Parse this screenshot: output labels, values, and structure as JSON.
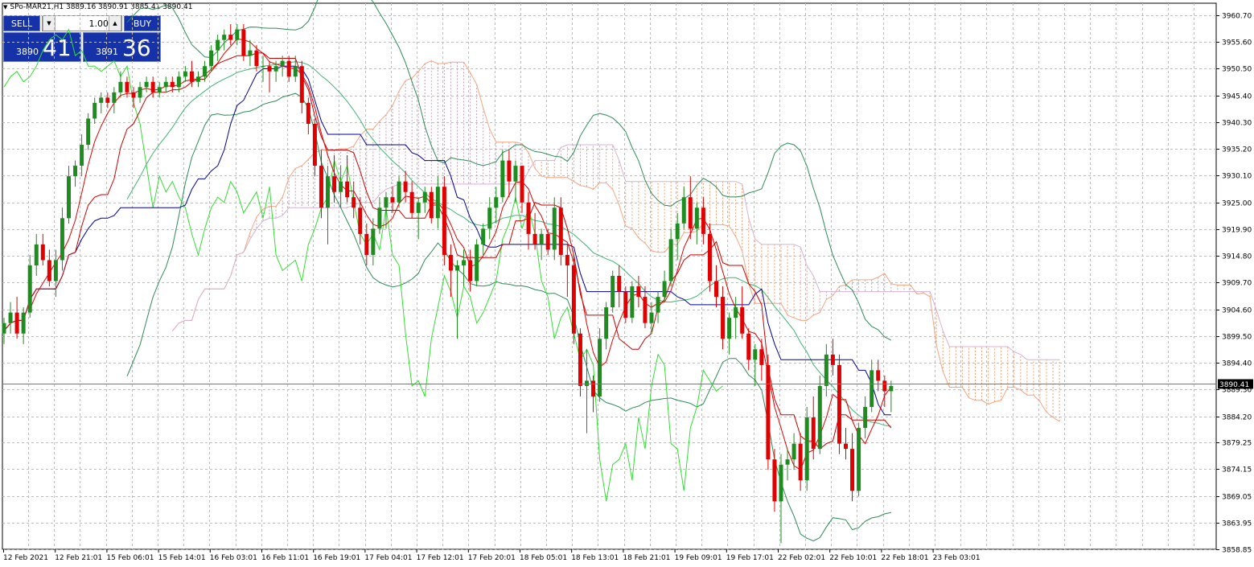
{
  "header": {
    "symbol_info": "SPo-MAR21,H1  3889.16 3890.91 3885.41 3890.41"
  },
  "trade_panel": {
    "sell_label": "SELL",
    "buy_label": "BUY",
    "lot_value": "1.00",
    "sell_price_small": "3890",
    "sell_price_big": "41",
    "buy_price_small": "3891",
    "buy_price_big": "36"
  },
  "colors": {
    "bull": "#1e8c1e",
    "bear": "#e00000",
    "grid": "#bcbcbc",
    "price_line": "#5f7f8f",
    "price_tag_bg": "#000000"
  },
  "chart_data": {
    "type": "candlestick",
    "symbol": "SPo-MAR21",
    "timeframe": "H1",
    "ylim": [
      3858.85,
      3963.0
    ],
    "y_ticks": [
      "3960.70",
      "3955.60",
      "3950.50",
      "3945.40",
      "3940.30",
      "3935.20",
      "3930.10",
      "3925.00",
      "3919.90",
      "3914.80",
      "3909.70",
      "3904.60",
      "3899.50",
      "3894.40",
      "3889.30",
      "3884.20",
      "3879.25",
      "3874.15",
      "3869.05",
      "3863.95",
      "3858.85"
    ],
    "x_ticks": [
      "12 Feb 2021",
      "12 Feb 21:01",
      "15 Feb 06:01",
      "15 Feb 14:01",
      "16 Feb 03:01",
      "16 Feb 11:01",
      "16 Feb 19:01",
      "17 Feb 04:01",
      "17 Feb 12:01",
      "17 Feb 20:01",
      "18 Feb 05:01",
      "18 Feb 13:01",
      "18 Feb 21:01",
      "19 Feb 09:01",
      "19 Feb 17:01",
      "22 Feb 02:01",
      "22 Feb 10:01",
      "22 Feb 18:01",
      "23 Feb 03:01"
    ],
    "current_price": "3890.41",
    "candles": [
      [
        3900,
        3903,
        3898,
        3902
      ],
      [
        3902,
        3906,
        3900,
        3904
      ],
      [
        3904,
        3907,
        3899,
        3900
      ],
      [
        3900,
        3905,
        3898,
        3904
      ],
      [
        3904,
        3915,
        3903,
        3913
      ],
      [
        3913,
        3919,
        3911,
        3917
      ],
      [
        3917,
        3919,
        3913,
        3914
      ],
      [
        3914,
        3916,
        3909,
        3910
      ],
      [
        3910,
        3916,
        3907,
        3914
      ],
      [
        3914,
        3924,
        3912,
        3922
      ],
      [
        3922,
        3932,
        3921,
        3930
      ],
      [
        3930,
        3933,
        3928,
        3932
      ],
      [
        3932,
        3938,
        3930,
        3936
      ],
      [
        3936,
        3942,
        3935,
        3941
      ],
      [
        3941,
        3945,
        3940,
        3944
      ],
      [
        3944,
        3946,
        3942,
        3945
      ],
      [
        3945,
        3946,
        3943,
        3944
      ],
      [
        3944,
        3947,
        3942,
        3946
      ],
      [
        3946,
        3950,
        3945,
        3948
      ],
      [
        3948,
        3949,
        3945,
        3946
      ],
      [
        3946,
        3947,
        3943,
        3945
      ],
      [
        3945,
        3948,
        3944,
        3947
      ],
      [
        3947,
        3949,
        3946,
        3948
      ],
      [
        3948,
        3949,
        3945,
        3946
      ],
      [
        3946,
        3948,
        3945,
        3947
      ],
      [
        3947,
        3949,
        3946,
        3948
      ],
      [
        3948,
        3949,
        3946,
        3947
      ],
      [
        3947,
        3950,
        3946,
        3949
      ],
      [
        3949,
        3951,
        3948,
        3950
      ],
      [
        3950,
        3952,
        3947,
        3948
      ],
      [
        3948,
        3950,
        3947,
        3949
      ],
      [
        3949,
        3952,
        3948,
        3951
      ],
      [
        3951,
        3955,
        3950,
        3954
      ],
      [
        3954,
        3957,
        3952,
        3956
      ],
      [
        3956,
        3958,
        3954,
        3957
      ],
      [
        3957,
        3959,
        3955,
        3956
      ],
      [
        3956,
        3959,
        3955,
        3958
      ],
      [
        3958,
        3959,
        3952,
        3953
      ],
      [
        3953,
        3956,
        3951,
        3954
      ],
      [
        3954,
        3955,
        3950,
        3951
      ],
      [
        3951,
        3953,
        3948,
        3951
      ],
      [
        3951,
        3952,
        3946,
        3950
      ],
      [
        3950,
        3952,
        3948,
        3951
      ],
      [
        3951,
        3953,
        3949,
        3952
      ],
      [
        3952,
        3953,
        3948,
        3949
      ],
      [
        3949,
        3953,
        3948,
        3951
      ],
      [
        3951,
        3952,
        3942,
        3944
      ],
      [
        3944,
        3945,
        3938,
        3940
      ],
      [
        3940,
        3941,
        3930,
        3932
      ],
      [
        3932,
        3935,
        3922,
        3924
      ],
      [
        3924,
        3932,
        3917,
        3930
      ],
      [
        3930,
        3934,
        3925,
        3927
      ],
      [
        3927,
        3932,
        3924,
        3929
      ],
      [
        3929,
        3934,
        3925,
        3926
      ],
      [
        3926,
        3929,
        3922,
        3924
      ],
      [
        3924,
        3926,
        3917,
        3919
      ],
      [
        3919,
        3921,
        3913,
        3915
      ],
      [
        3915,
        3922,
        3913,
        3920
      ],
      [
        3920,
        3926,
        3919,
        3924
      ],
      [
        3924,
        3927,
        3920,
        3926
      ],
      [
        3926,
        3928,
        3923,
        3925
      ],
      [
        3925,
        3930,
        3924,
        3929
      ],
      [
        3929,
        3931,
        3925,
        3927
      ],
      [
        3927,
        3929,
        3922,
        3923
      ],
      [
        3923,
        3926,
        3918,
        3925
      ],
      [
        3925,
        3928,
        3923,
        3927
      ],
      [
        3927,
        3928,
        3921,
        3922
      ],
      [
        3922,
        3930,
        3920,
        3928
      ],
      [
        3928,
        3930,
        3913,
        3915
      ],
      [
        3915,
        3917,
        3907,
        3912
      ],
      [
        3912,
        3914,
        3899,
        3913
      ],
      [
        3913,
        3916,
        3909,
        3914
      ],
      [
        3914,
        3916,
        3908,
        3910
      ],
      [
        3910,
        3918,
        3909,
        3917
      ],
      [
        3917,
        3921,
        3915,
        3920
      ],
      [
        3920,
        3926,
        3918,
        3924
      ],
      [
        3924,
        3928,
        3921,
        3926
      ],
      [
        3926,
        3935,
        3925,
        3933
      ],
      [
        3933,
        3935,
        3926,
        3929
      ],
      [
        3929,
        3933,
        3925,
        3932
      ],
      [
        3932,
        3932,
        3923,
        3925
      ],
      [
        3925,
        3927,
        3916,
        3919
      ],
      [
        3919,
        3923,
        3916,
        3917
      ],
      [
        3917,
        3920,
        3914,
        3919
      ],
      [
        3919,
        3920,
        3915,
        3916
      ],
      [
        3916,
        3926,
        3914,
        3924
      ],
      [
        3924,
        3926,
        3913,
        3915
      ],
      [
        3915,
        3917,
        3907,
        3913
      ],
      [
        3913,
        3915,
        3898,
        3900
      ],
      [
        3900,
        3901,
        3888,
        3890
      ],
      [
        3890,
        3897,
        3881,
        3891
      ],
      [
        3891,
        3892,
        3885,
        3888
      ],
      [
        3888,
        3901,
        3887,
        3899
      ],
      [
        3899,
        3906,
        3897,
        3905
      ],
      [
        3905,
        3912,
        3904,
        3911
      ],
      [
        3911,
        3913,
        3905,
        3908
      ],
      [
        3908,
        3909,
        3902,
        3903
      ],
      [
        3903,
        3910,
        3902,
        3909
      ],
      [
        3909,
        3911,
        3905,
        3907
      ],
      [
        3907,
        3909,
        3901,
        3902
      ],
      [
        3902,
        3906,
        3900,
        3904
      ],
      [
        3904,
        3908,
        3902,
        3907
      ],
      [
        3907,
        3912,
        3906,
        3910
      ],
      [
        3910,
        3920,
        3909,
        3918
      ],
      [
        3918,
        3923,
        3914,
        3921
      ],
      [
        3921,
        3928,
        3920,
        3926
      ],
      [
        3926,
        3930,
        3918,
        3920
      ],
      [
        3920,
        3925,
        3917,
        3924
      ],
      [
        3924,
        3926,
        3917,
        3919
      ],
      [
        3919,
        3921,
        3908,
        3910
      ],
      [
        3910,
        3913,
        3905,
        3907
      ],
      [
        3907,
        3909,
        3897,
        3899
      ],
      [
        3899,
        3904,
        3896,
        3903
      ],
      [
        3903,
        3907,
        3899,
        3905
      ],
      [
        3905,
        3909,
        3899,
        3900
      ],
      [
        3900,
        3901,
        3893,
        3895
      ],
      [
        3895,
        3898,
        3890,
        3897
      ],
      [
        3897,
        3899,
        3891,
        3894
      ],
      [
        3894,
        3896,
        3874,
        3876
      ],
      [
        3876,
        3878,
        3866,
        3868
      ],
      [
        3868,
        3877,
        3860,
        3875
      ],
      [
        3875,
        3878,
        3872,
        3876
      ],
      [
        3876,
        3881,
        3874,
        3879
      ],
      [
        3879,
        3881,
        3870,
        3872
      ],
      [
        3872,
        3886,
        3870,
        3884
      ],
      [
        3884,
        3888,
        3876,
        3878
      ],
      [
        3878,
        3892,
        3877,
        3890
      ],
      [
        3890,
        3898,
        3888,
        3896
      ],
      [
        3896,
        3899,
        3892,
        3894
      ],
      [
        3894,
        3896,
        3877,
        3879
      ],
      [
        3879,
        3882,
        3876,
        3878
      ],
      [
        3878,
        3881,
        3868,
        3870
      ],
      [
        3870,
        3883,
        3869,
        3882
      ],
      [
        3882,
        3888,
        3880,
        3886
      ],
      [
        3886,
        3895,
        3885,
        3893
      ],
      [
        3893,
        3895,
        3889,
        3891
      ],
      [
        3891,
        3892,
        3886,
        3889
      ],
      [
        3889,
        3891,
        3885,
        3890
      ]
    ]
  }
}
